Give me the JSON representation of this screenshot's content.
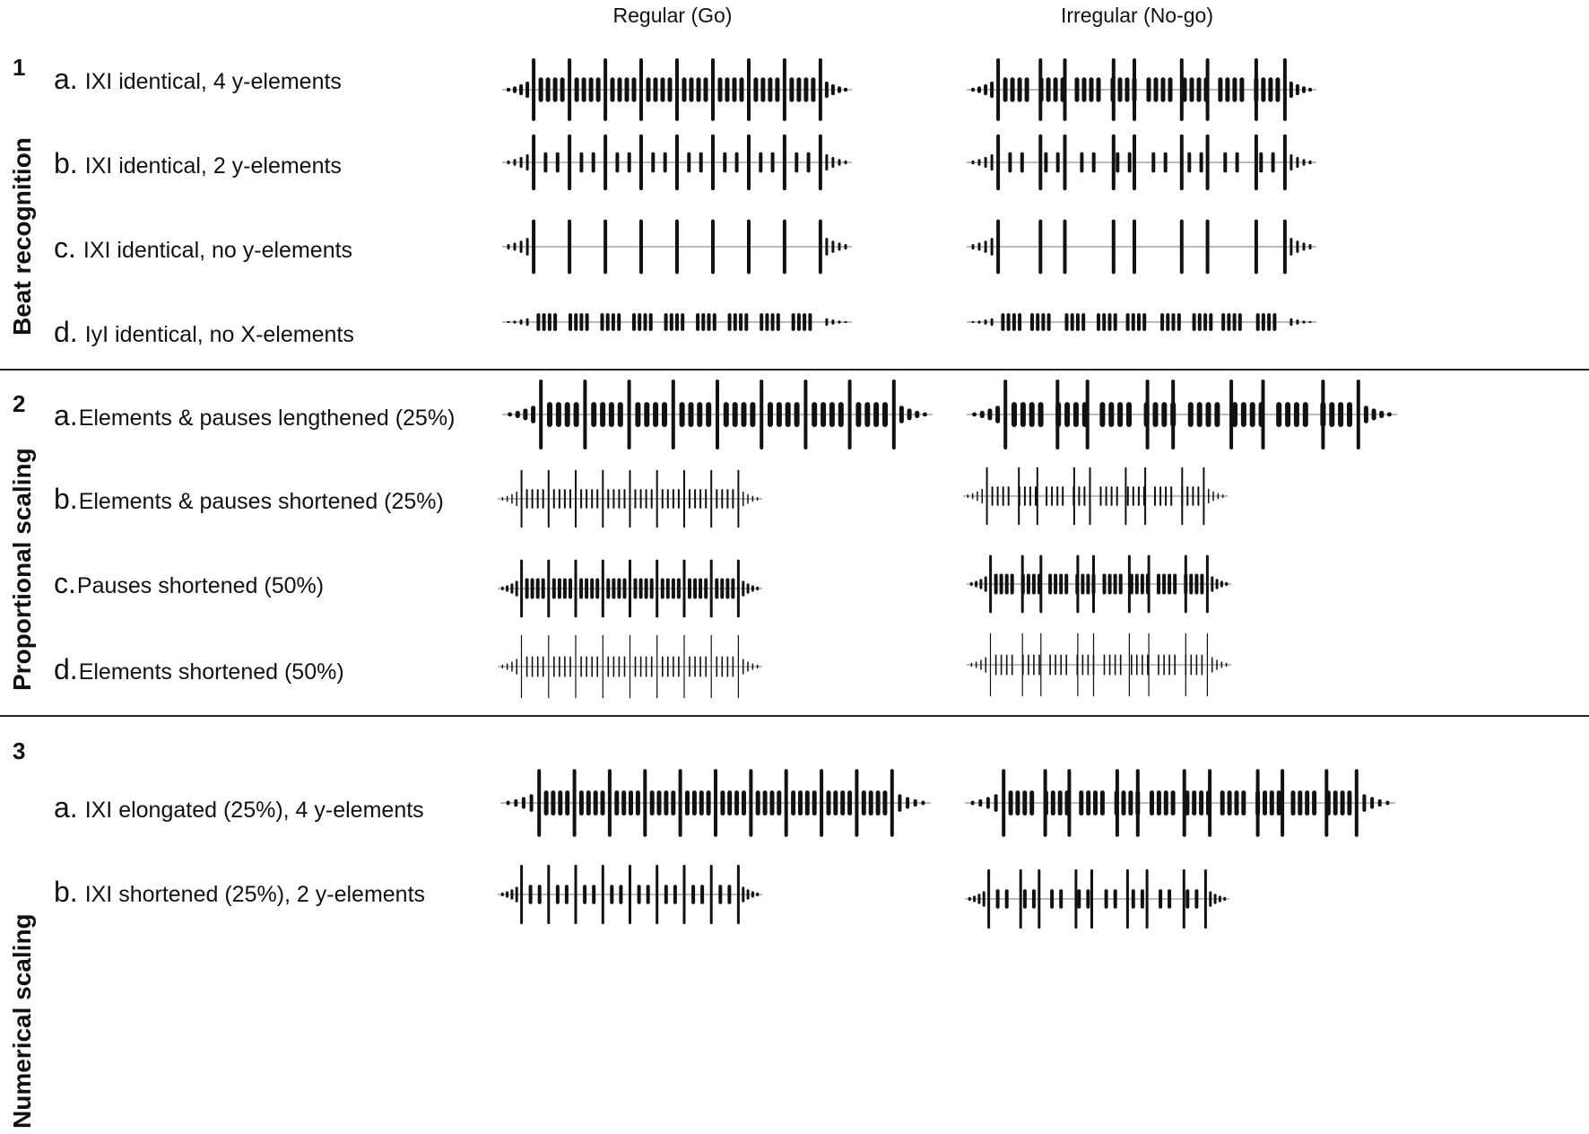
{
  "columns": {
    "regular": "Regular  (Go)",
    "irregular": "Irregular  (No-go)"
  },
  "groups": [
    {
      "number": "1",
      "title": "Beat recognition",
      "rows": [
        {
          "letter": "a.",
          "text": "IXI identical,  4 y-elements",
          "regular": "4y",
          "irregular": "4y"
        },
        {
          "letter": "b.",
          "text": "IXI identical,  2 y-elements",
          "regular": "2y",
          "irregular": "2y"
        },
        {
          "letter": "c.",
          "text": "IXI identical,  no y-elements",
          "regular": "0y",
          "irregular": "0y"
        },
        {
          "letter": "d.",
          "text": "IyI identical,  no X-elements",
          "regular": "yonly",
          "irregular": "yonly"
        }
      ]
    },
    {
      "number": "2",
      "title": "Proportional scaling",
      "rows": [
        {
          "letter": "a.",
          "text": "Elements & pauses lengthened  (25%)",
          "regular": "long",
          "irregular": "long"
        },
        {
          "letter": "b.",
          "text": "Elements  & pauses  shortened  (25%)",
          "regular": "short",
          "irregular": "short"
        },
        {
          "letter": "c.",
          "text": "Pauses  shortened  (50%)",
          "regular": "pause",
          "irregular": "pause"
        },
        {
          "letter": "d.",
          "text": "Elements  shortened  (50%)",
          "regular": "thin",
          "irregular": "thin"
        }
      ]
    },
    {
      "number": "3",
      "title": "Numerical scaling",
      "rows": [
        {
          "letter": "a.",
          "text": "IXI elongated  (25%),  4 y-elements",
          "regular": "elong",
          "irregular": "elong"
        },
        {
          "letter": "b.",
          "text": "IXI shortened  (25%),  2 y-elements",
          "regular": "short2",
          "irregular": "short2"
        }
      ]
    }
  ]
}
